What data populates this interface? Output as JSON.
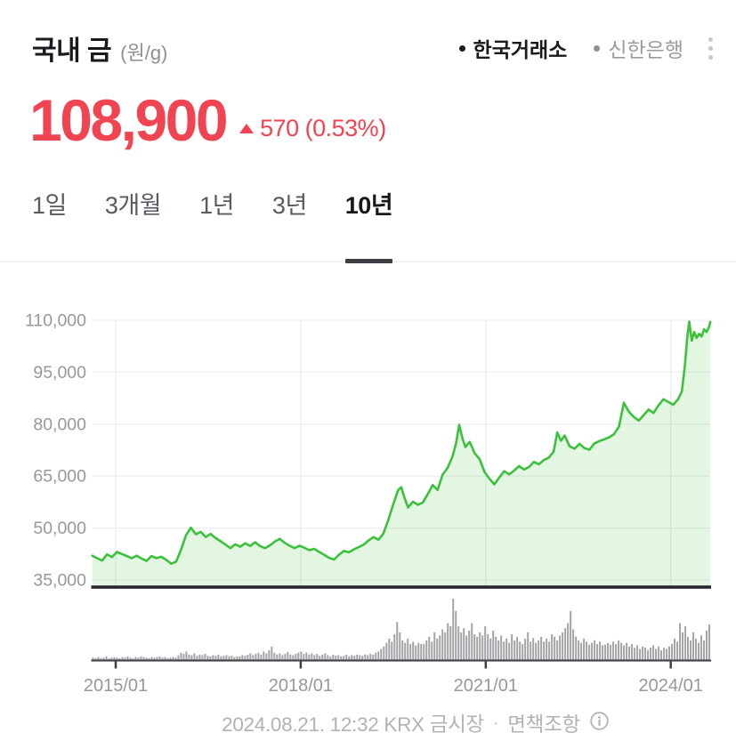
{
  "header": {
    "title": "국내 금",
    "unit": "(원/g)",
    "sources": [
      {
        "label": "한국거래소",
        "active": true
      },
      {
        "label": "신한은행",
        "active": false
      }
    ]
  },
  "price": {
    "value": "108,900",
    "change_direction": "up",
    "change_value": "570",
    "change_percent": "(0.53%)"
  },
  "tabs": [
    {
      "label": "1일",
      "selected": false
    },
    {
      "label": "3개월",
      "selected": false
    },
    {
      "label": "1년",
      "selected": false
    },
    {
      "label": "3년",
      "selected": false
    },
    {
      "label": "10년",
      "selected": true
    }
  ],
  "footer": {
    "timestamp": "2024.08.21. 12:32 KRX 금시장",
    "separator": "·",
    "disclaimer": "면책조항",
    "info_icon": "circled-i"
  },
  "colors": {
    "price_up_red": "#f04452",
    "chart_line_green": "#3cc13c",
    "chart_fill_green": "#3cc13c",
    "volume_gray": "#a4a4a9",
    "axis_dark": "#26272b",
    "grid_gray": "#f0f0f2",
    "label_gray": "#97979d"
  },
  "chart_data": {
    "type": "area",
    "title": "국내 금 10년 시세 (원/g)",
    "legend_position": "top-right",
    "grid": true,
    "y_domain": [
      35000,
      110000
    ],
    "y_axis": [
      {
        "value": 110000,
        "label": "110,000"
      },
      {
        "value": 95000,
        "label": "95,000"
      },
      {
        "value": 80000,
        "label": "80,000"
      },
      {
        "value": 65000,
        "label": "65,000"
      },
      {
        "value": 50000,
        "label": "50,000"
      },
      {
        "value": 35000,
        "label": "35,000"
      }
    ],
    "x_axis": [
      {
        "value": 2015.0,
        "label": "2015/01"
      },
      {
        "value": 2018.0,
        "label": "2018/01"
      },
      {
        "value": 2021.0,
        "label": "2021/01"
      },
      {
        "value": 2024.0,
        "label": "2024/01"
      }
    ],
    "price_series": [
      [
        2014.62,
        42000
      ],
      [
        2014.7,
        41300
      ],
      [
        2014.78,
        40600
      ],
      [
        2014.86,
        42400
      ],
      [
        2014.94,
        41600
      ],
      [
        2015.02,
        43100
      ],
      [
        2015.1,
        42500
      ],
      [
        2015.18,
        41900
      ],
      [
        2015.26,
        41300
      ],
      [
        2015.34,
        42000
      ],
      [
        2015.42,
        41200
      ],
      [
        2015.5,
        40500
      ],
      [
        2015.58,
        41900
      ],
      [
        2015.66,
        41300
      ],
      [
        2015.74,
        41700
      ],
      [
        2015.82,
        40800
      ],
      [
        2015.9,
        39700
      ],
      [
        2015.98,
        40300
      ],
      [
        2016.06,
        43800
      ],
      [
        2016.14,
        47900
      ],
      [
        2016.22,
        50100
      ],
      [
        2016.3,
        48200
      ],
      [
        2016.38,
        48900
      ],
      [
        2016.46,
        47400
      ],
      [
        2016.54,
        48300
      ],
      [
        2016.62,
        47100
      ],
      [
        2016.7,
        46200
      ],
      [
        2016.78,
        45200
      ],
      [
        2016.86,
        44200
      ],
      [
        2016.94,
        45300
      ],
      [
        2017.02,
        44600
      ],
      [
        2017.1,
        45600
      ],
      [
        2017.18,
        44800
      ],
      [
        2017.26,
        45900
      ],
      [
        2017.34,
        44800
      ],
      [
        2017.42,
        44200
      ],
      [
        2017.5,
        45000
      ],
      [
        2017.58,
        46100
      ],
      [
        2017.66,
        46900
      ],
      [
        2017.74,
        45700
      ],
      [
        2017.82,
        44900
      ],
      [
        2017.9,
        44200
      ],
      [
        2017.98,
        44900
      ],
      [
        2018.06,
        44300
      ],
      [
        2018.14,
        43600
      ],
      [
        2018.22,
        44000
      ],
      [
        2018.3,
        43100
      ],
      [
        2018.38,
        42300
      ],
      [
        2018.46,
        41400
      ],
      [
        2018.54,
        40900
      ],
      [
        2018.62,
        42300
      ],
      [
        2018.7,
        43400
      ],
      [
        2018.78,
        43000
      ],
      [
        2018.86,
        43800
      ],
      [
        2018.94,
        44500
      ],
      [
        2019.02,
        45200
      ],
      [
        2019.1,
        46400
      ],
      [
        2019.18,
        47400
      ],
      [
        2019.26,
        46600
      ],
      [
        2019.34,
        48400
      ],
      [
        2019.42,
        52300
      ],
      [
        2019.5,
        56800
      ],
      [
        2019.58,
        61000
      ],
      [
        2019.63,
        61800
      ],
      [
        2019.68,
        58900
      ],
      [
        2019.74,
        55900
      ],
      [
        2019.82,
        57600
      ],
      [
        2019.9,
        56700
      ],
      [
        2019.98,
        57400
      ],
      [
        2020.06,
        59800
      ],
      [
        2020.14,
        62400
      ],
      [
        2020.22,
        61000
      ],
      [
        2020.3,
        65400
      ],
      [
        2020.38,
        67300
      ],
      [
        2020.46,
        70600
      ],
      [
        2020.52,
        74500
      ],
      [
        2020.57,
        79800
      ],
      [
        2020.62,
        76000
      ],
      [
        2020.67,
        73400
      ],
      [
        2020.74,
        74900
      ],
      [
        2020.82,
        71600
      ],
      [
        2020.9,
        69900
      ],
      [
        2020.98,
        66200
      ],
      [
        2021.06,
        64200
      ],
      [
        2021.14,
        62600
      ],
      [
        2021.22,
        64600
      ],
      [
        2021.3,
        66400
      ],
      [
        2021.38,
        65500
      ],
      [
        2021.46,
        66600
      ],
      [
        2021.54,
        67900
      ],
      [
        2021.62,
        66900
      ],
      [
        2021.7,
        67600
      ],
      [
        2021.78,
        69100
      ],
      [
        2021.86,
        68400
      ],
      [
        2021.94,
        69600
      ],
      [
        2022.02,
        70300
      ],
      [
        2022.1,
        72000
      ],
      [
        2022.16,
        77600
      ],
      [
        2022.22,
        75200
      ],
      [
        2022.28,
        76700
      ],
      [
        2022.36,
        73600
      ],
      [
        2022.44,
        72900
      ],
      [
        2022.52,
        74300
      ],
      [
        2022.6,
        73100
      ],
      [
        2022.68,
        72600
      ],
      [
        2022.76,
        74400
      ],
      [
        2022.84,
        75100
      ],
      [
        2022.92,
        75600
      ],
      [
        2023.0,
        76200
      ],
      [
        2023.08,
        77100
      ],
      [
        2023.16,
        79300
      ],
      [
        2023.24,
        86200
      ],
      [
        2023.32,
        83600
      ],
      [
        2023.4,
        82100
      ],
      [
        2023.48,
        81000
      ],
      [
        2023.56,
        82600
      ],
      [
        2023.64,
        84200
      ],
      [
        2023.72,
        83200
      ],
      [
        2023.8,
        85400
      ],
      [
        2023.88,
        87200
      ],
      [
        2023.96,
        86400
      ],
      [
        2024.04,
        85600
      ],
      [
        2024.12,
        87200
      ],
      [
        2024.18,
        89500
      ],
      [
        2024.23,
        97000
      ],
      [
        2024.27,
        105500
      ],
      [
        2024.3,
        109600
      ],
      [
        2024.34,
        104100
      ],
      [
        2024.38,
        106600
      ],
      [
        2024.42,
        104900
      ],
      [
        2024.46,
        106100
      ],
      [
        2024.5,
        105300
      ],
      [
        2024.54,
        107400
      ],
      [
        2024.58,
        106600
      ],
      [
        2024.62,
        108100
      ],
      [
        2024.64,
        109500
      ]
    ],
    "volume_series": [
      4,
      3,
      5,
      3,
      4,
      6,
      3,
      4,
      5,
      4,
      3,
      5,
      4,
      6,
      4,
      3,
      5,
      4,
      6,
      5,
      4,
      3,
      5,
      4,
      5,
      6,
      4,
      5,
      3,
      4,
      5,
      4,
      8,
      12,
      10,
      14,
      9,
      8,
      11,
      7,
      9,
      8,
      10,
      7,
      6,
      8,
      7,
      9,
      6,
      7,
      8,
      6,
      7,
      5,
      6,
      6,
      8,
      7,
      9,
      11,
      8,
      10,
      12,
      9,
      14,
      11,
      16,
      22,
      12,
      9,
      11,
      8,
      10,
      13,
      9,
      8,
      10,
      12,
      14,
      10,
      12,
      9,
      11,
      8,
      10,
      7,
      9,
      11,
      8,
      6,
      9,
      7,
      8,
      6,
      7,
      9,
      6,
      8,
      7,
      9,
      8,
      7,
      9,
      8,
      10,
      9,
      12,
      14,
      18,
      22,
      28,
      35,
      30,
      42,
      62,
      45,
      32,
      28,
      35,
      26,
      30,
      24,
      28,
      26,
      26,
      32,
      38,
      30,
      45,
      35,
      40,
      50,
      45,
      60,
      55,
      100,
      80,
      55,
      45,
      52,
      40,
      48,
      60,
      42,
      38,
      45,
      40,
      55,
      42,
      35,
      48,
      38,
      32,
      40,
      30,
      35,
      28,
      42,
      32,
      38,
      30,
      26,
      35,
      45,
      30,
      36,
      28,
      32,
      38,
      30,
      35,
      30,
      42,
      38,
      32,
      40,
      45,
      52,
      60,
      80,
      50,
      38,
      32,
      28,
      35,
      30,
      25,
      28,
      32,
      26,
      30,
      24,
      25,
      28,
      25,
      30,
      26,
      32,
      28,
      24,
      28,
      22,
      26,
      20,
      24,
      18,
      22,
      20,
      16,
      20,
      24,
      18,
      22,
      16,
      20,
      18,
      22,
      26,
      35,
      30,
      60,
      45,
      55,
      38,
      32,
      45,
      35,
      28,
      40,
      32,
      48,
      58
    ]
  }
}
